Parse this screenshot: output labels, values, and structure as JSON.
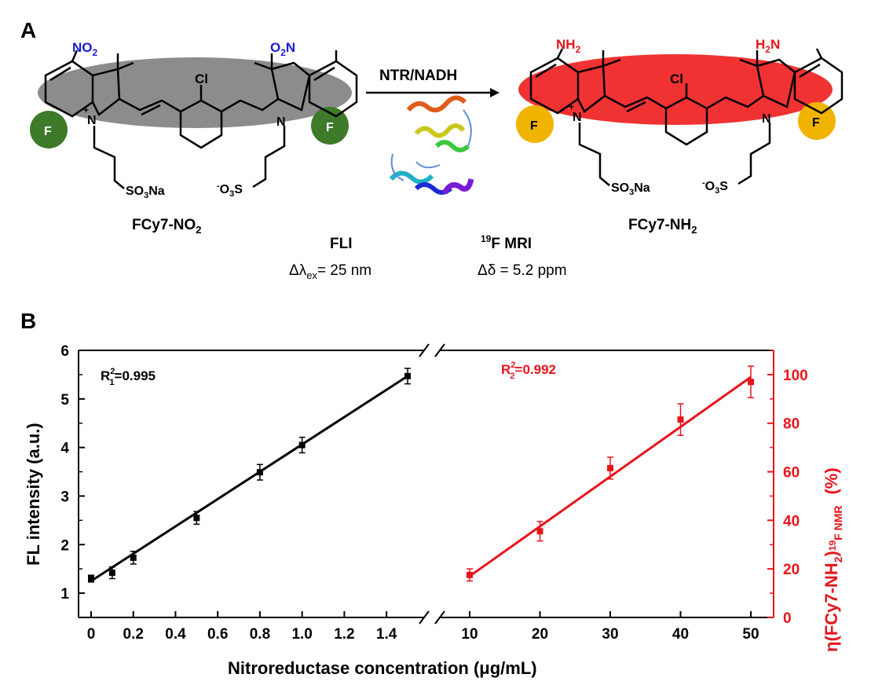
{
  "panel_a": {
    "label": "A",
    "reaction_label": "NTR/NADH",
    "reactant": {
      "name": "FCy7-NO",
      "name_sub": "2",
      "left_group": "NO",
      "left_group_sub": "2",
      "right_group": "O",
      "right_group_sub_pre": "2",
      "right_group_post": "N",
      "chloro": "Cl",
      "fluoro": "F",
      "nitrogen": "N",
      "charge": "+",
      "sulfonate_left": "SO",
      "sulfonate_left_sub": "3",
      "sulfonate_left_post": "Na",
      "sulfonate_right_pre": "-",
      "sulfonate_right": "O",
      "sulfonate_right_sub": "3",
      "sulfonate_right_post": "S"
    },
    "product": {
      "name": "FCy7-NH",
      "name_sub": "2",
      "left_group": "NH",
      "left_group_sub": "2",
      "right_group": "H",
      "right_group_sub_pre": "2",
      "right_group_post": "N"
    },
    "fli": {
      "title": "FLI",
      "value_pre": "Δλ",
      "value_sub": "ex",
      "value_post": "= 25 nm"
    },
    "mri": {
      "title_sup": "19",
      "title": "F MRI",
      "value": "Δδ = 5.2 ppm"
    },
    "colors": {
      "nitro": "#1a1ad6",
      "amine": "#e8141c",
      "ellipse_gray": "#7f7f7f",
      "ellipse_red": "#ef1c1c",
      "fluoro_green": "#3d7a2a",
      "fluoro_yellow": "#f0b400"
    }
  },
  "panel_b": {
    "label": "B",
    "xlabel": "Nitroreductase concentration (μg/mL)",
    "ylabel_left": "FL intensity (a.u.)",
    "ylabel_right_pre": "η(FCy7-NH",
    "ylabel_right_sub1": "2",
    "ylabel_right_mid": ")",
    "ylabel_right_sup": "19",
    "ylabel_right_sub2": "F NMR",
    "ylabel_right_post": "(%)",
    "r1_label": "R",
    "r1_sup": "2",
    "r1_sub": "1",
    "r1_value": "=0.995",
    "r2_label": "R",
    "r2_sup": "2",
    "r2_sub": "2",
    "r2_value": "=0.992"
  },
  "chart_data": [
    {
      "type": "scatter",
      "name": "FL intensity",
      "color": "#000000",
      "x": [
        0,
        0.1,
        0.2,
        0.5,
        0.8,
        1.0,
        1.5
      ],
      "y": [
        1.3,
        1.42,
        1.73,
        2.55,
        3.49,
        4.05,
        5.47
      ],
      "error": [
        0.07,
        0.12,
        0.13,
        0.13,
        0.16,
        0.16,
        0.16
      ],
      "fit": {
        "x0": 0,
        "y0": 1.25,
        "x1": 1.5,
        "y1": 5.47
      },
      "xticks": [
        "0",
        "0.2",
        "0.4",
        "0.6",
        "0.8",
        "1.0",
        "1.2",
        "1.4"
      ],
      "xlim": [
        -0.05,
        1.6
      ],
      "yticks": [
        "1",
        "2",
        "3",
        "4",
        "5",
        "6"
      ],
      "ylim": [
        0.5,
        6
      ],
      "r2": 0.995
    },
    {
      "type": "scatter",
      "name": "η(FCy7-NH2) 19F NMR",
      "color": "#e8141c",
      "x": [
        10,
        20,
        30,
        40,
        50
      ],
      "y": [
        17.5,
        35.5,
        61.5,
        81.5,
        97
      ],
      "error": [
        2.5,
        4,
        4.5,
        6.5,
        6.5
      ],
      "fit": {
        "x0": 10,
        "y0": 17,
        "x1": 50,
        "y1": 99
      },
      "xticks": [
        "10",
        "20",
        "30",
        "40",
        "50"
      ],
      "yticks": [
        "0",
        "20",
        "40",
        "60",
        "80",
        "100"
      ],
      "ylim": [
        0,
        110
      ],
      "r2": 0.992
    }
  ]
}
